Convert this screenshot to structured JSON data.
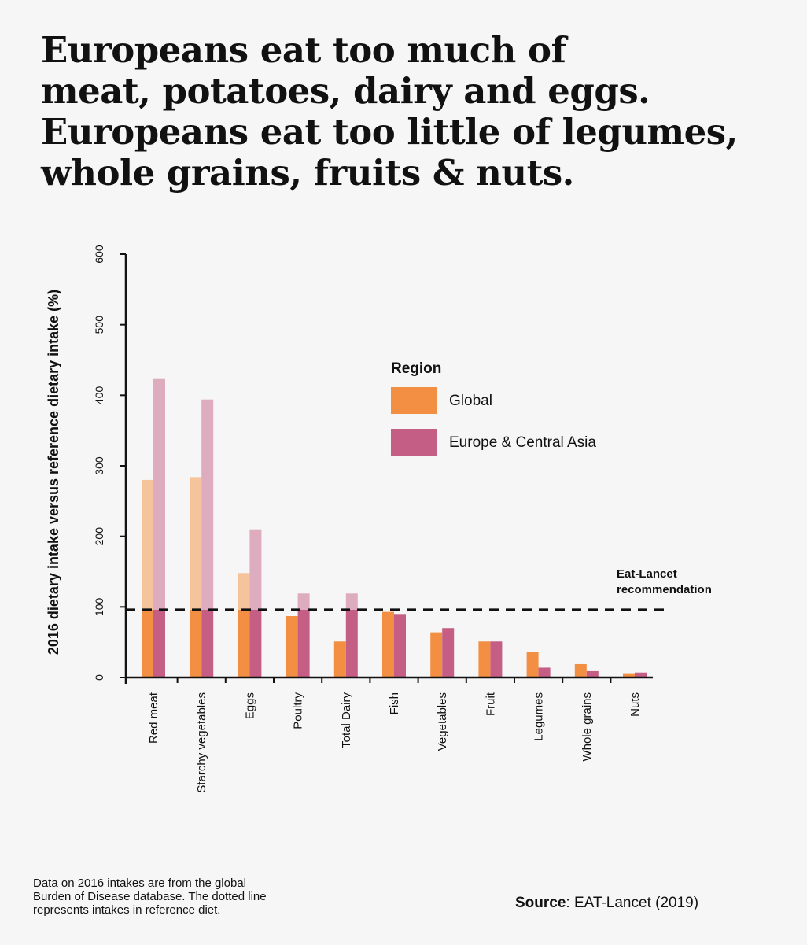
{
  "title_lines": [
    "Europeans eat too much of",
    "meat, potatoes, dairy and eggs.",
    "Europeans eat too little of legumes,",
    "whole grains, fruits & nuts."
  ],
  "footnote_lines": [
    "Data on 2016 intakes are from the global",
    "Burden of Disease database. The dotted line",
    "represents intakes in reference diet."
  ],
  "source": {
    "label": "Source",
    "text": ":  EAT-Lancet (2019)"
  },
  "colors": {
    "global": "#f38f43",
    "global_light": "#f5c49c",
    "europe": "#c55e85",
    "europe_light": "#deacbf"
  },
  "chart_data": {
    "type": "bar",
    "title": "",
    "ylabel": "2016 dietary intake versus reference dietary intake (%)",
    "xlabel": "",
    "ylim": [
      0,
      600
    ],
    "yticks": [
      0,
      100,
      200,
      300,
      400,
      500,
      600
    ],
    "categories": [
      "Red meat",
      "Starchy vegetables",
      "Eggs",
      "Poultry",
      "Total Dairy",
      "Fish",
      "Vegetables",
      "Fruit",
      "Legumes",
      "Whole grains",
      "Nuts"
    ],
    "series": [
      {
        "name": "Global",
        "values": [
          280,
          284,
          148,
          87,
          51,
          93,
          64,
          51,
          36,
          19,
          6
        ]
      },
      {
        "name": "Europe & Central Asia",
        "values": [
          423,
          394,
          210,
          119,
          119,
          90,
          70,
          51,
          14,
          9,
          7
        ]
      }
    ],
    "reference_line": {
      "value": 96,
      "label_lines": [
        "Eat-Lancet",
        "recommendation"
      ]
    },
    "legend": {
      "title": "Region",
      "position": "top-right"
    },
    "grid": false
  }
}
